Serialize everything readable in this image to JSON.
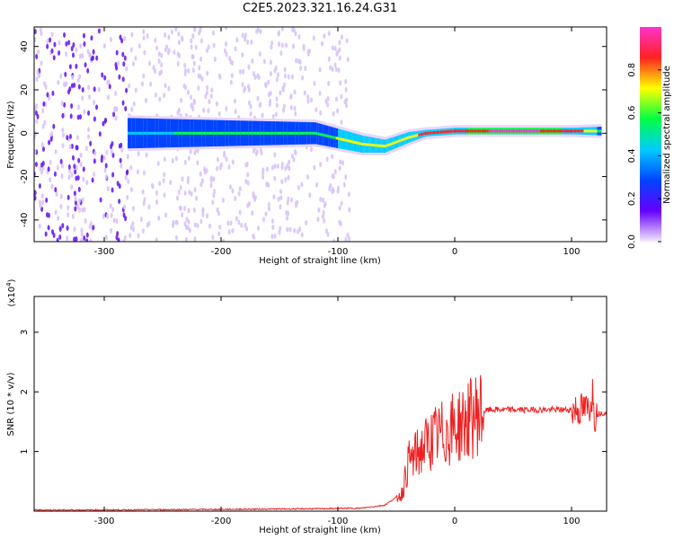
{
  "title": "C2E5.2023.321.16.24.G31",
  "colors": {
    "snr_line": "#ee2222",
    "axis": "#000000"
  },
  "chart_data": [
    {
      "type": "heatmap",
      "xlabel": "Height of straight line (km)",
      "ylabel": "Frequency (Hz)",
      "xlim": [
        -360,
        130
      ],
      "ylim": [
        -50,
        49
      ],
      "x_ticks": [
        -300,
        -200,
        -100,
        0,
        100
      ],
      "y_ticks": [
        -40,
        -20,
        0,
        20,
        40
      ],
      "colorbar": {
        "label": "Normalized spectral amplitude",
        "range": [
          0,
          1
        ],
        "ticks": [
          "0.0",
          "0.2",
          "0.4",
          "0.6",
          "0.8"
        ],
        "colors": [
          "#f4eafc",
          "#6600ff",
          "#0044ff",
          "#00ccff",
          "#00ff44",
          "#ffff00",
          "#ff2222",
          "#ff33cc"
        ]
      },
      "ridge": [
        {
          "x": -280,
          "freq": 0,
          "amp": 0.45,
          "width": 14
        },
        {
          "x": -200,
          "freq": 0,
          "amp": 0.55,
          "width": 12
        },
        {
          "x": -120,
          "freq": 0,
          "amp": 0.6,
          "width": 10
        },
        {
          "x": -80,
          "freq": -5,
          "amp": 0.7,
          "width": 8
        },
        {
          "x": -60,
          "freq": -6,
          "amp": 0.65,
          "width": 6
        },
        {
          "x": -40,
          "freq": -2,
          "amp": 0.7,
          "width": 5
        },
        {
          "x": -25,
          "freq": 0,
          "amp": 0.85,
          "width": 3
        },
        {
          "x": 0,
          "freq": 1,
          "amp": 0.9,
          "width": 3
        },
        {
          "x": 50,
          "freq": 1,
          "amp": 0.95,
          "width": 3
        },
        {
          "x": 100,
          "freq": 1,
          "amp": 0.9,
          "width": 3
        },
        {
          "x": 125,
          "freq": 1,
          "amp": 0.6,
          "width": 4
        }
      ]
    },
    {
      "type": "line",
      "xlabel": "Height of straight line (km)",
      "ylabel": "SNR (10 * v/v)",
      "y_exponent_label": "(x10",
      "y_exponent_power": "4",
      "y_exponent_close": ")",
      "xlim": [
        -360,
        130
      ],
      "ylim": [
        0,
        36000
      ],
      "x_ticks": [
        -300,
        -200,
        -100,
        0,
        100
      ],
      "y_ticks": [
        1,
        2,
        3
      ],
      "series": [
        {
          "x": [
            -360,
            -300,
            -200,
            -120,
            -80,
            -60,
            -45,
            -40,
            -30,
            -20,
            -10,
            0,
            10,
            20,
            30,
            50,
            80,
            100,
            110,
            115,
            118,
            120,
            125,
            130
          ],
          "y": [
            200,
            200,
            300,
            400,
            500,
            1000,
            3000,
            8000,
            10000,
            12000,
            13000,
            14000,
            15000,
            16500,
            17000,
            17000,
            17000,
            17000,
            17000,
            17000,
            20000,
            16000,
            16500,
            16500
          ]
        }
      ]
    }
  ]
}
